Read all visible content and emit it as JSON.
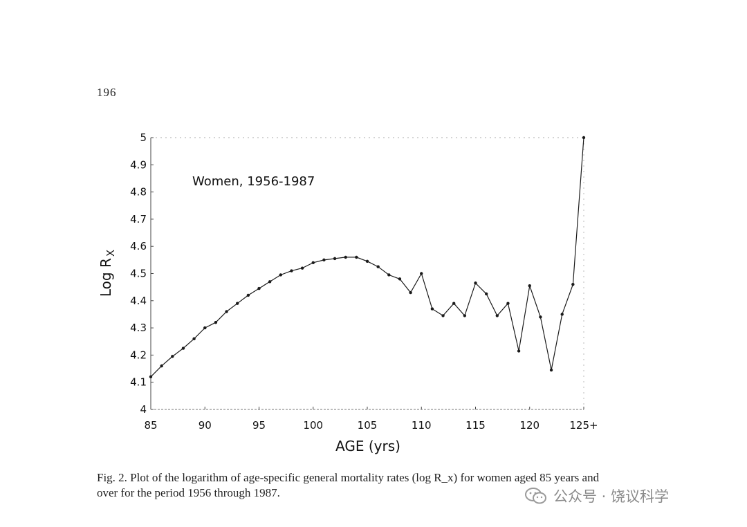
{
  "page": {
    "number": "196",
    "caption_line1": "Fig. 2. Plot of the logarithm of age-specific general mortality rates (log R_x) for women aged 85 years and",
    "caption_line2": "over for the period 1956 through 1987.",
    "watermark": "公众号 · 饶议科学"
  },
  "chart_data": {
    "type": "line",
    "title": "",
    "annotation": "Women, 1956-1987",
    "xlabel": "AGE (yrs)",
    "ylabel": "Log R",
    "ylabel_subscript": "X",
    "xlim": [
      85,
      125
    ],
    "ylim": [
      4,
      5
    ],
    "x_ticks": [
      "85",
      "90",
      "95",
      "100",
      "105",
      "110",
      "115",
      "120",
      "125+"
    ],
    "x_tick_values": [
      85,
      90,
      95,
      100,
      105,
      110,
      115,
      120,
      125
    ],
    "y_ticks": [
      "4",
      "4.1",
      "4.2",
      "4.3",
      "4.4",
      "4.5",
      "4.6",
      "4.7",
      "4.8",
      "4.9",
      "5"
    ],
    "y_tick_values": [
      4,
      4.1,
      4.2,
      4.3,
      4.4,
      4.5,
      4.6,
      4.7,
      4.8,
      4.9,
      5
    ],
    "grid": false,
    "legend": "none",
    "line_color": "#1a1a1a",
    "series": [
      {
        "x": [
          85,
          86,
          87,
          88,
          89,
          90,
          91,
          92,
          93,
          94,
          95,
          96,
          97,
          98,
          99,
          100,
          101,
          102,
          103,
          104,
          105,
          106,
          107,
          108,
          109,
          110,
          111,
          112,
          113,
          114,
          115,
          116,
          117,
          118,
          119,
          120,
          121,
          122,
          123,
          124,
          125
        ],
        "y": [
          4.12,
          4.16,
          4.195,
          4.225,
          4.26,
          4.3,
          4.32,
          4.36,
          4.39,
          4.42,
          4.445,
          4.47,
          4.495,
          4.51,
          4.52,
          4.54,
          4.55,
          4.555,
          4.56,
          4.56,
          4.545,
          4.525,
          4.495,
          4.48,
          4.43,
          4.5,
          4.37,
          4.345,
          4.39,
          4.345,
          4.465,
          4.425,
          4.345,
          4.39,
          4.215,
          4.455,
          4.34,
          4.145,
          4.35,
          4.46,
          5.0
        ]
      }
    ]
  }
}
